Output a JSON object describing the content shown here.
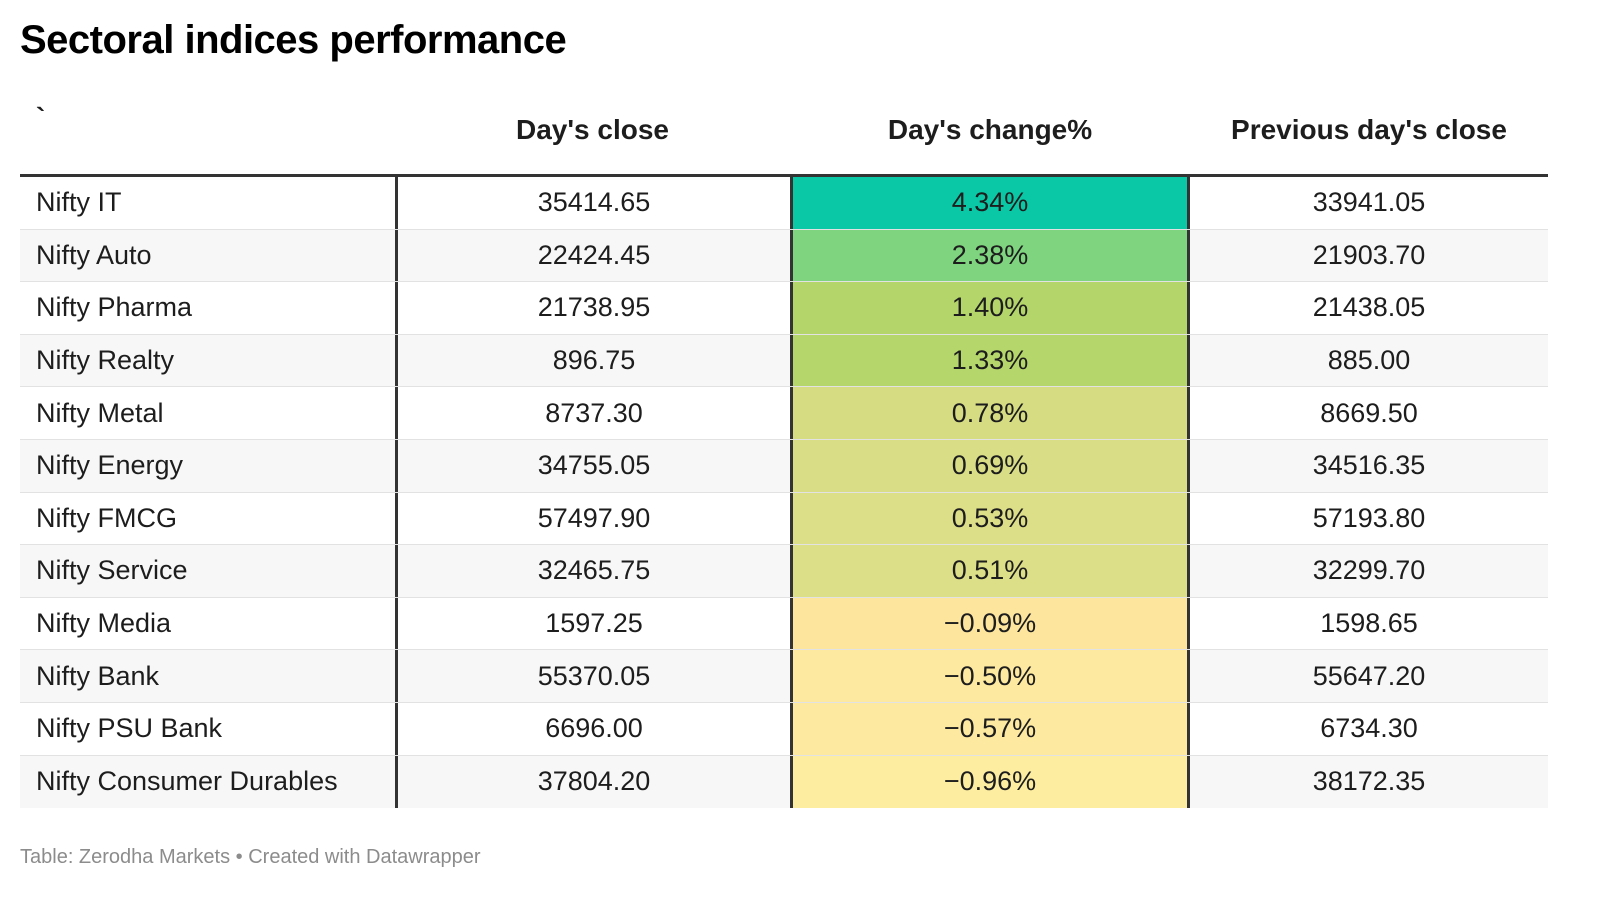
{
  "title": "Sectoral indices performance",
  "chart_data": {
    "type": "table",
    "columns": [
      "`",
      "Day's close",
      "Day's change%",
      "Previous day's close"
    ],
    "rows": [
      {
        "name": "Nifty IT",
        "close": "35414.65",
        "change": "4.34%",
        "prev": "33941.05",
        "change_value": 4.34,
        "color": "#0ac7a5"
      },
      {
        "name": "Nifty Auto",
        "close": "22424.45",
        "change": "2.38%",
        "prev": "21903.70",
        "change_value": 2.38,
        "color": "#7fd47f"
      },
      {
        "name": "Nifty Pharma",
        "close": "21738.95",
        "change": "1.40%",
        "prev": "21438.05",
        "change_value": 1.4,
        "color": "#b3d56a"
      },
      {
        "name": "Nifty Realty",
        "close": "896.75",
        "change": "1.33%",
        "prev": "885.00",
        "change_value": 1.33,
        "color": "#b5d66b"
      },
      {
        "name": "Nifty Metal",
        "close": "8737.30",
        "change": "0.78%",
        "prev": "8669.50",
        "change_value": 0.78,
        "color": "#d5dc82"
      },
      {
        "name": "Nifty Energy",
        "close": "34755.05",
        "change": "0.69%",
        "prev": "34516.35",
        "change_value": 0.69,
        "color": "#d8dd86"
      },
      {
        "name": "Nifty FMCG",
        "close": "57497.90",
        "change": "0.53%",
        "prev": "57193.80",
        "change_value": 0.53,
        "color": "#dcde88"
      },
      {
        "name": "Nifty Service",
        "close": "32465.75",
        "change": "0.51%",
        "prev": "32299.70",
        "change_value": 0.51,
        "color": "#dcde88"
      },
      {
        "name": "Nifty Media",
        "close": "1597.25",
        "change": "−0.09%",
        "prev": "1598.65",
        "change_value": -0.09,
        "color": "#fde59e"
      },
      {
        "name": "Nifty Bank",
        "close": "55370.05",
        "change": "−0.50%",
        "prev": "55647.20",
        "change_value": -0.5,
        "color": "#fde99f"
      },
      {
        "name": "Nifty PSU Bank",
        "close": "6696.00",
        "change": "−0.57%",
        "prev": "6734.30",
        "change_value": -0.57,
        "color": "#fde9a0"
      },
      {
        "name": "Nifty Consumer Durables",
        "close": "37804.20",
        "change": "−0.96%",
        "prev": "38172.35",
        "change_value": -0.96,
        "color": "#fdeda1"
      }
    ]
  },
  "footer": "Table: Zerodha Markets • Created with Datawrapper"
}
